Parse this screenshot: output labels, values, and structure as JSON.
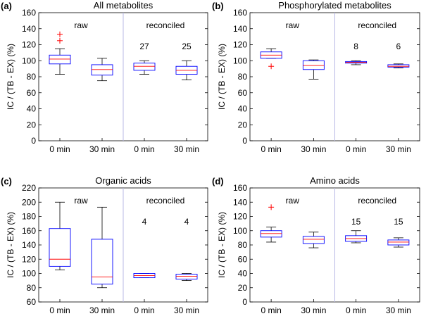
{
  "chart_data": [
    {
      "type": "box",
      "panel_label": "(a)",
      "title": "All metabolites",
      "ylabel": "IC / (TB - EX) (%)",
      "ylim": [
        0,
        160
      ],
      "yticks": [
        0,
        20,
        40,
        60,
        80,
        100,
        120,
        140,
        160
      ],
      "categories": [
        "0 min",
        "30 min",
        "0 min",
        "30 min"
      ],
      "groups": [
        "raw",
        "reconciled"
      ],
      "counts": [
        "",
        "",
        "27",
        "25"
      ],
      "boxes": [
        {
          "whisker_low": 83,
          "q1": 96,
          "median": 102,
          "q3": 107,
          "whisker_high": 115,
          "outliers": [
            125,
            133
          ]
        },
        {
          "whisker_low": 75,
          "q1": 82,
          "median": 89,
          "q3": 95,
          "whisker_high": 103,
          "outliers": []
        },
        {
          "whisker_low": 83,
          "q1": 88,
          "median": 93,
          "q3": 97,
          "whisker_high": 100,
          "outliers": []
        },
        {
          "whisker_low": 76,
          "q1": 83,
          "median": 88,
          "q3": 93,
          "whisker_high": 100,
          "outliers": []
        }
      ]
    },
    {
      "type": "box",
      "panel_label": "(b)",
      "title": "Phosphorylated metabolites",
      "ylabel": "IC / (TB - EX) (%)",
      "ylim": [
        0,
        160
      ],
      "yticks": [
        0,
        20,
        40,
        60,
        80,
        100,
        120,
        140,
        160
      ],
      "categories": [
        "0 min",
        "30 min",
        "0 min",
        "30 min"
      ],
      "groups": [
        "raw",
        "reconciled"
      ],
      "counts": [
        "",
        "",
        "8",
        "6"
      ],
      "boxes": [
        {
          "whisker_low": 103,
          "q1": 103,
          "median": 107,
          "q3": 111,
          "whisker_high": 115,
          "outliers": [
            93
          ]
        },
        {
          "whisker_low": 77,
          "q1": 89,
          "median": 94,
          "q3": 100,
          "whisker_high": 101,
          "outliers": []
        },
        {
          "whisker_low": 95,
          "q1": 97,
          "median": 98,
          "q3": 99,
          "whisker_high": 100,
          "outliers": []
        },
        {
          "whisker_low": 91,
          "q1": 92,
          "median": 93,
          "q3": 95,
          "whisker_high": 96,
          "outliers": []
        }
      ]
    },
    {
      "type": "box",
      "panel_label": "(c)",
      "title": "Organic acids",
      "ylabel": "IC / (TB - EX) (%)",
      "ylim": [
        60,
        220
      ],
      "yticks": [
        60,
        80,
        100,
        120,
        140,
        160,
        180,
        200,
        220
      ],
      "categories": [
        "0 min",
        "30 min",
        "0 min",
        "30 min"
      ],
      "groups": [
        "raw",
        "reconciled"
      ],
      "counts": [
        "",
        "",
        "4",
        "4"
      ],
      "boxes": [
        {
          "whisker_low": 105,
          "q1": 110,
          "median": 120,
          "q3": 163,
          "whisker_high": 200,
          "outliers": []
        },
        {
          "whisker_low": 80,
          "q1": 85,
          "median": 95,
          "q3": 148,
          "whisker_high": 193,
          "outliers": []
        },
        {
          "whisker_low": 94,
          "q1": 94,
          "median": 97,
          "q3": 100,
          "whisker_high": 100,
          "outliers": []
        },
        {
          "whisker_low": 90,
          "q1": 92,
          "median": 96,
          "q3": 99,
          "whisker_high": 100,
          "outliers": []
        }
      ]
    },
    {
      "type": "box",
      "panel_label": "(d)",
      "title": "Amino acids",
      "ylabel": "IC / (TB - EX) (%)",
      "ylim": [
        0,
        160
      ],
      "yticks": [
        0,
        20,
        40,
        60,
        80,
        100,
        120,
        140,
        160
      ],
      "categories": [
        "0 min",
        "30 min",
        "0 min",
        "30 min"
      ],
      "groups": [
        "raw",
        "reconciled"
      ],
      "counts": [
        "",
        "",
        "15",
        "15"
      ],
      "boxes": [
        {
          "whisker_low": 84,
          "q1": 91,
          "median": 96,
          "q3": 100,
          "whisker_high": 105,
          "outliers": [
            133
          ]
        },
        {
          "whisker_low": 76,
          "q1": 82,
          "median": 88,
          "q3": 92,
          "whisker_high": 98,
          "outliers": []
        },
        {
          "whisker_low": 83,
          "q1": 85,
          "median": 89,
          "q3": 93,
          "whisker_high": 100,
          "outliers": []
        },
        {
          "whisker_low": 77,
          "q1": 80,
          "median": 84,
          "q3": 87,
          "whisker_high": 90,
          "outliers": []
        }
      ]
    }
  ],
  "colors": {
    "box": "#0000ff",
    "median": "#ff0000",
    "whisker": "#000000",
    "outlier": "#ff0000",
    "divider": "#b8b8e6"
  }
}
